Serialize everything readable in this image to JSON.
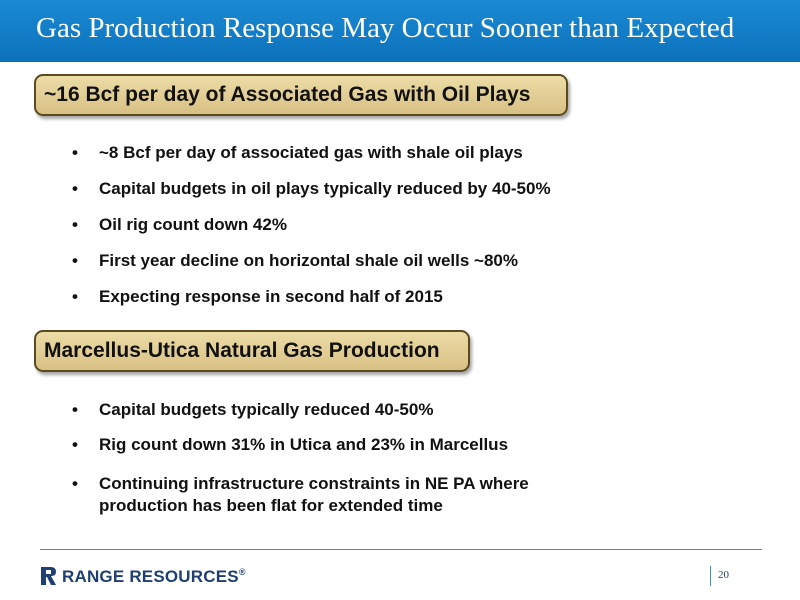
{
  "slide": {
    "title": "Gas Production Response May Occur Sooner than Expected",
    "page_number": "20"
  },
  "section1": {
    "heading": "~16 Bcf per day of Associated Gas with Oil Plays",
    "bullets": [
      "~8 Bcf per day of associated gas with shale oil plays",
      "Capital budgets in oil plays typically reduced by 40-50%",
      "Oil rig count down 42%",
      "First year decline on horizontal shale oil wells ~80%",
      "Expecting response in second half of 2015"
    ]
  },
  "section2": {
    "heading": "Marcellus-Utica Natural Gas Production",
    "bullets": [
      "Capital budgets typically reduced 40-50%",
      "Rig count down 31% in Utica and 23% in Marcellus",
      "Continuing infrastructure constraints in NE PA where production has been flat for extended time"
    ]
  },
  "footer": {
    "logo_text": "RANGE RESOURCES",
    "logo_mark": "®"
  },
  "colors": {
    "title_bar": "#0c71bb",
    "heading_fill": "#e2cc92",
    "logo": "#1f3f73"
  }
}
